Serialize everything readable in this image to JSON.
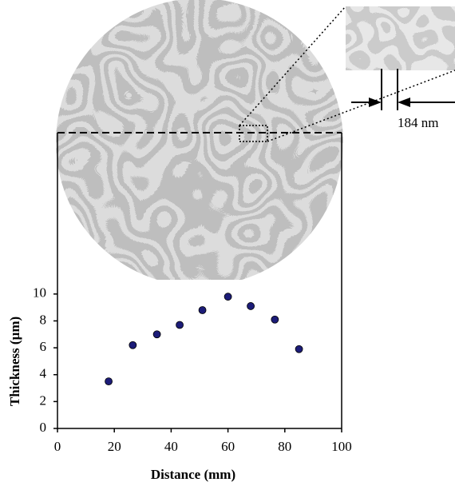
{
  "chart_data": {
    "type": "scatter",
    "x": [
      18,
      26.5,
      35,
      43,
      51,
      60,
      68,
      76.5,
      85
    ],
    "values": [
      3.5,
      6.2,
      7.0,
      7.7,
      8.8,
      9.8,
      9.1,
      8.1,
      5.9
    ],
    "color": "#1c1c78",
    "xlim": [
      0,
      100
    ],
    "xticks": [
      0,
      20,
      40,
      60,
      80,
      100
    ],
    "ylim": [
      0,
      22
    ],
    "yticks": [
      0,
      2,
      4,
      6,
      8,
      10
    ],
    "xlabel": "Distance (mm)",
    "ylabel": "Thickness (µm)",
    "annotation": "184 nm"
  }
}
